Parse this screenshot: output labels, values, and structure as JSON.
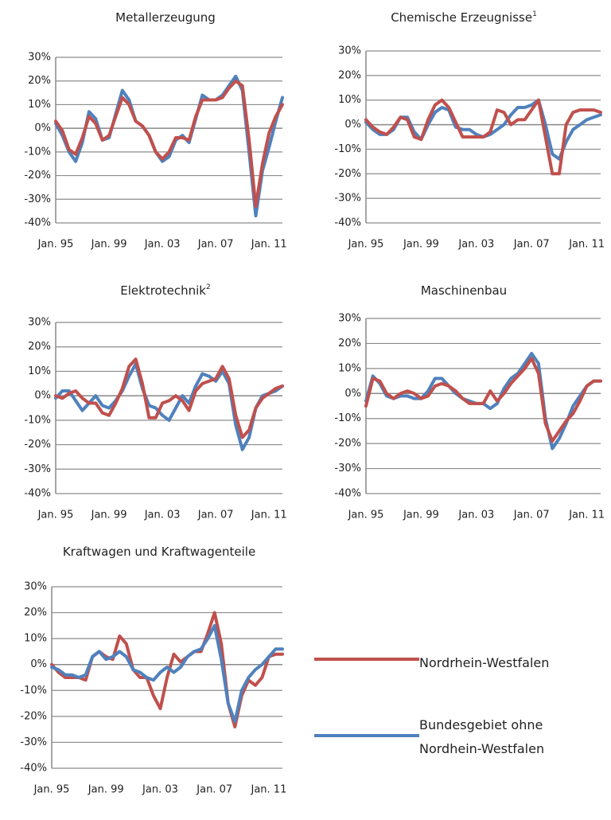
{
  "chart_data": [
    {
      "type": "line",
      "title": "Metallerzeugung",
      "categories": [
        "Jan. 95",
        null,
        null,
        null,
        null,
        null,
        null,
        null,
        "Jan. 99",
        null,
        null,
        null,
        null,
        null,
        null,
        null,
        "Jan. 03",
        null,
        null,
        null,
        null,
        null,
        null,
        null,
        "Jan. 07",
        null,
        null,
        null,
        null,
        null,
        null,
        null,
        "Jan. 11",
        null,
        null
      ],
      "series": [
        {
          "color": "#4f81bd",
          "values": [
            2,
            -3,
            -10,
            -14,
            -6,
            7,
            4,
            -5,
            -4,
            6,
            16,
            12,
            3,
            1,
            -3,
            -10,
            -14,
            -12,
            -5,
            -3,
            -6,
            4,
            14,
            12,
            12,
            14,
            18,
            22,
            16,
            -10,
            -37,
            -18,
            -8,
            3,
            13
          ]
        },
        {
          "color": "#c0504d",
          "values": [
            3,
            -1,
            -9,
            -11,
            -4,
            5,
            2,
            -5,
            -3,
            5,
            13,
            10,
            3,
            1,
            -3,
            -10,
            -13,
            -10,
            -4,
            -4,
            -5,
            5,
            12,
            12,
            12,
            13,
            17,
            20,
            18,
            -5,
            -33,
            -15,
            -2,
            5,
            10
          ]
        }
      ],
      "ylim": [
        -40,
        30
      ],
      "yticks": [
        {
          "value": -40,
          "label": "-40%"
        },
        {
          "value": -30,
          "label": "-30%"
        },
        {
          "value": -20,
          "label": "-20%"
        },
        {
          "value": -10,
          "label": "-10%"
        },
        {
          "value": 0,
          "label": "0%"
        },
        {
          "value": 10,
          "label": "10%"
        },
        {
          "value": 20,
          "label": "20%"
        },
        {
          "value": 30,
          "label": "30%"
        }
      ],
      "grid": true
    },
    {
      "type": "line",
      "title": "Chemische Erzeugnisse",
      "footnote": "1",
      "categories": [
        "Jan. 95",
        null,
        null,
        null,
        null,
        null,
        null,
        null,
        "Jan. 99",
        null,
        null,
        null,
        null,
        null,
        null,
        null,
        "Jan. 03",
        null,
        null,
        null,
        null,
        null,
        null,
        null,
        "Jan. 07",
        null,
        null,
        null,
        null,
        null,
        null,
        null,
        "Jan. 11",
        null,
        null
      ],
      "series": [
        {
          "color": "#4f81bd",
          "values": [
            1,
            -2,
            -4,
            -4,
            -2,
            3,
            3,
            -3,
            -6,
            0,
            5,
            7,
            6,
            -1,
            -2,
            -2,
            -4,
            -5,
            -4,
            -2,
            0,
            4,
            7,
            7,
            8,
            10,
            0,
            -12,
            -14,
            -7,
            -2,
            0,
            2,
            3,
            4
          ]
        },
        {
          "color": "#c0504d",
          "values": [
            2,
            -1,
            -3,
            -4,
            -1,
            3,
            2,
            -5,
            -6,
            2,
            8,
            10,
            7,
            1,
            -5,
            -5,
            -5,
            -5,
            -3,
            6,
            5,
            0,
            2,
            2,
            6,
            10,
            -5,
            -20,
            -20,
            0,
            5,
            6,
            6,
            6,
            5
          ]
        }
      ],
      "ylim": [
        -40,
        30
      ],
      "yticks": [
        {
          "value": -40,
          "label": "-40%"
        },
        {
          "value": -30,
          "label": "-30%"
        },
        {
          "value": -20,
          "label": "-20%"
        },
        {
          "value": -10,
          "label": "-10%"
        },
        {
          "value": 0,
          "label": "0%"
        },
        {
          "value": 10,
          "label": "10%"
        },
        {
          "value": 20,
          "label": "20%"
        },
        {
          "value": 30,
          "label": "30%"
        }
      ],
      "grid": true
    },
    {
      "type": "line",
      "title": "Elektrotechnik",
      "footnote": "2",
      "categories": [
        "Jan. 95",
        null,
        null,
        null,
        null,
        null,
        null,
        null,
        "Jan. 99",
        null,
        null,
        null,
        null,
        null,
        null,
        null,
        "Jan. 03",
        null,
        null,
        null,
        null,
        null,
        null,
        null,
        "Jan. 07",
        null,
        null,
        null,
        null,
        null,
        null,
        null,
        "Jan. 11",
        null,
        null
      ],
      "series": [
        {
          "color": "#4f81bd",
          "values": [
            -1,
            2,
            2,
            -2,
            -6,
            -3,
            0,
            -4,
            -5,
            -2,
            2,
            8,
            13,
            3,
            -4,
            -5,
            -8,
            -10,
            -5,
            0,
            -3,
            4,
            9,
            8,
            6,
            10,
            5,
            -12,
            -22,
            -17,
            -5,
            0,
            1,
            2,
            4
          ]
        },
        {
          "color": "#c0504d",
          "values": [
            0,
            -1,
            1,
            2,
            -1,
            -3,
            -3,
            -7,
            -8,
            -3,
            3,
            12,
            15,
            5,
            -9,
            -9,
            -3,
            -2,
            0,
            -2,
            -6,
            2,
            5,
            6,
            7,
            12,
            7,
            -8,
            -17,
            -14,
            -5,
            -1,
            1,
            3,
            4
          ]
        }
      ],
      "ylim": [
        -40,
        30
      ],
      "yticks": [
        {
          "value": -40,
          "label": "-40%"
        },
        {
          "value": -30,
          "label": "-30%"
        },
        {
          "value": -20,
          "label": "-20%"
        },
        {
          "value": -10,
          "label": "-10%"
        },
        {
          "value": 0,
          "label": "0%"
        },
        {
          "value": 10,
          "label": "10%"
        },
        {
          "value": 20,
          "label": "20%"
        },
        {
          "value": 30,
          "label": "30%"
        }
      ],
      "grid": true
    },
    {
      "type": "line",
      "title": "Maschinenbau",
      "categories": [
        "Jan. 95",
        null,
        null,
        null,
        null,
        null,
        null,
        null,
        "Jan. 99",
        null,
        null,
        null,
        null,
        null,
        null,
        null,
        "Jan. 03",
        null,
        null,
        null,
        null,
        null,
        null,
        null,
        "Jan. 07",
        null,
        null,
        null,
        null,
        null,
        null,
        null,
        "Jan. 11",
        null,
        null
      ],
      "series": [
        {
          "color": "#4f81bd",
          "values": [
            -3,
            7,
            4,
            -1,
            -2,
            -1,
            -1,
            -2,
            -2,
            1,
            6,
            6,
            3,
            0,
            -2,
            -3,
            -4,
            -4,
            -6,
            -4,
            2,
            6,
            8,
            12,
            16,
            12,
            -10,
            -22,
            -18,
            -12,
            -5,
            -1,
            3,
            5,
            5
          ]
        },
        {
          "color": "#c0504d",
          "values": [
            -5,
            6,
            5,
            0,
            -2,
            0,
            1,
            0,
            -2,
            -1,
            3,
            4,
            3,
            1,
            -2,
            -4,
            -4,
            -4,
            1,
            -3,
            0,
            4,
            7,
            10,
            14,
            8,
            -12,
            -19,
            -15,
            -11,
            -8,
            -3,
            3,
            5,
            5
          ]
        }
      ],
      "ylim": [
        -40,
        30
      ],
      "yticks": [
        {
          "value": -40,
          "label": "-40%"
        },
        {
          "value": -30,
          "label": "-30%"
        },
        {
          "value": -20,
          "label": "-20%"
        },
        {
          "value": -10,
          "label": "-10%"
        },
        {
          "value": 0,
          "label": "0%"
        },
        {
          "value": 10,
          "label": "10%"
        },
        {
          "value": 20,
          "label": "20%"
        },
        {
          "value": 30,
          "label": "30%"
        }
      ],
      "grid": true
    },
    {
      "type": "line",
      "title": "Kraftwagen und Kraftwagenteile",
      "categories": [
        "Jan. 95",
        null,
        null,
        null,
        null,
        null,
        null,
        null,
        "Jan. 99",
        null,
        null,
        null,
        null,
        null,
        null,
        null,
        "Jan. 03",
        null,
        null,
        null,
        null,
        null,
        null,
        null,
        "Jan. 07",
        null,
        null,
        null,
        null,
        null,
        null,
        null,
        "Jan. 11",
        null,
        null
      ],
      "series": [
        {
          "name": "Nordrhein-Westfalen",
          "color": "#c0504d",
          "values": [
            0,
            -3,
            -5,
            -5,
            -5,
            -6,
            3,
            5,
            3,
            2,
            11,
            8,
            -2,
            -5,
            -5,
            -12,
            -17,
            -5,
            4,
            1,
            3,
            5,
            5,
            12,
            20,
            8,
            -15,
            -24,
            -12,
            -6,
            -8,
            -5,
            3,
            4,
            4
          ]
        },
        {
          "name": "Bundesgebiet ohne Nordhein-Westfalen",
          "color": "#4f81bd",
          "values": [
            -1,
            -2,
            -4,
            -4,
            -5,
            -4,
            3,
            5,
            2,
            3,
            5,
            3,
            -2,
            -3,
            -5,
            -6,
            -3,
            -1,
            -3,
            -1,
            3,
            5,
            6,
            10,
            15,
            2,
            -15,
            -22,
            -10,
            -5,
            -2,
            0,
            3,
            6,
            6
          ]
        }
      ],
      "ylim": [
        -40,
        30
      ],
      "yticks": [
        {
          "value": -40,
          "label": "-40%"
        },
        {
          "value": -30,
          "label": "-30%"
        },
        {
          "value": -20,
          "label": "-20%"
        },
        {
          "value": -10,
          "label": "-10%"
        },
        {
          "value": 0,
          "label": "0%"
        },
        {
          "value": 10,
          "label": "10%"
        },
        {
          "value": 20,
          "label": "20%"
        },
        {
          "value": 30,
          "label": "30%"
        }
      ],
      "grid": true
    }
  ]
}
